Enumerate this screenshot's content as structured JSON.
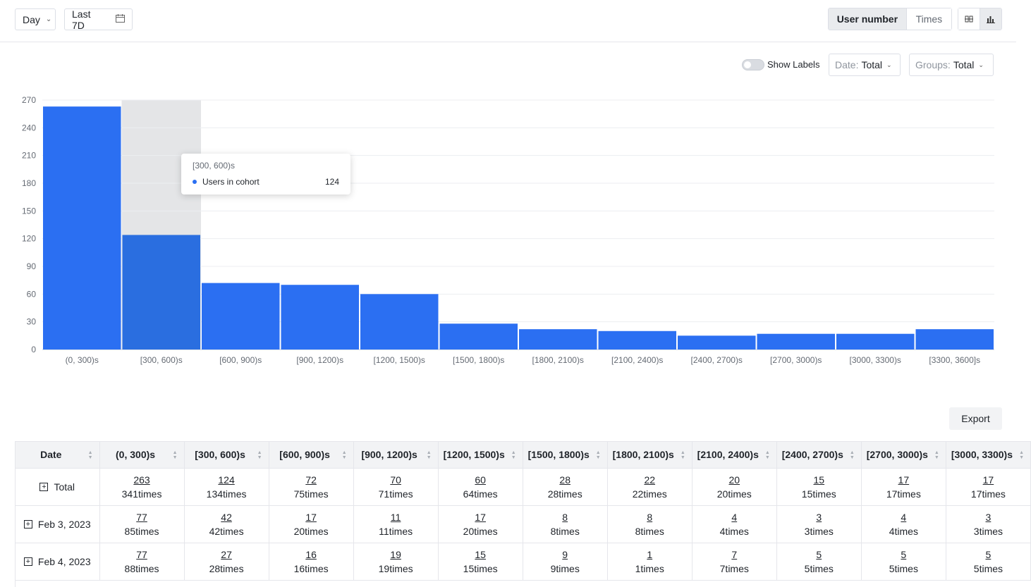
{
  "topbar": {
    "granularity": "Day",
    "date_range": "Last 7D",
    "metric_tabs": [
      {
        "label": "User number",
        "active": true
      },
      {
        "label": "Times",
        "active": false
      }
    ],
    "view_icons": [
      "split-view-icon",
      "bar-chart-icon"
    ]
  },
  "controls": {
    "show_labels": "Show Labels",
    "show_labels_on": false,
    "date_filter": {
      "key": "Date:",
      "value": "Total"
    },
    "groups_filter": {
      "key": "Groups:",
      "value": "Total"
    }
  },
  "chart_data": {
    "type": "bar",
    "categories": [
      "(0, 300)s",
      "[300, 600)s",
      "[600, 900)s",
      "[900, 1200)s",
      "[1200, 1500)s",
      "[1500, 1800)s",
      "[1800, 2100)s",
      "[2100, 2400)s",
      "[2400, 2700)s",
      "[2700, 3000)s",
      "[3000, 3300)s",
      "[3300, 3600]s"
    ],
    "series": [
      {
        "values": [
          263,
          124,
          72,
          70,
          60,
          28,
          22,
          20,
          15,
          17,
          17,
          22
        ]
      }
    ],
    "ylim": [
      0,
      270
    ],
    "yticks": [
      0,
      30,
      60,
      90,
      120,
      150,
      180,
      210,
      240,
      270
    ],
    "grid": true,
    "color": "#2b6ff2",
    "highlight_index": 1
  },
  "tooltip": {
    "title": "[300, 600)s",
    "series": "Users in cohort",
    "value": "124"
  },
  "table": {
    "export_label": "Export",
    "headers": [
      "Date",
      "(0, 300)s",
      "[300, 600)s",
      "[600, 900)s",
      "[900, 1200)s",
      "[1200, 1500)s",
      "[1500, 1800)s",
      "[1800, 2100)s",
      "[2100, 2400)s",
      "[2400, 2700)s",
      "[2700, 3000)s",
      "[3000, 3300)s"
    ],
    "rows": [
      {
        "label": "Total",
        "cells": [
          [
            "263",
            "341times"
          ],
          [
            "124",
            "134times"
          ],
          [
            "72",
            "75times"
          ],
          [
            "70",
            "71times"
          ],
          [
            "60",
            "64times"
          ],
          [
            "28",
            "28times"
          ],
          [
            "22",
            "22times"
          ],
          [
            "20",
            "20times"
          ],
          [
            "15",
            "15times"
          ],
          [
            "17",
            "17times"
          ],
          [
            "17",
            "17times"
          ]
        ]
      },
      {
        "label": "Feb 3, 2023",
        "cells": [
          [
            "77",
            "85times"
          ],
          [
            "42",
            "42times"
          ],
          [
            "17",
            "20times"
          ],
          [
            "11",
            "11times"
          ],
          [
            "17",
            "20times"
          ],
          [
            "8",
            "8times"
          ],
          [
            "8",
            "8times"
          ],
          [
            "4",
            "4times"
          ],
          [
            "3",
            "3times"
          ],
          [
            "4",
            "4times"
          ],
          [
            "3",
            "3times"
          ]
        ]
      },
      {
        "label": "Feb 4, 2023",
        "cells": [
          [
            "77",
            "88times"
          ],
          [
            "27",
            "28times"
          ],
          [
            "16",
            "16times"
          ],
          [
            "19",
            "19times"
          ],
          [
            "15",
            "15times"
          ],
          [
            "9",
            "9times"
          ],
          [
            "1",
            "1times"
          ],
          [
            "7",
            "7times"
          ],
          [
            "5",
            "5times"
          ],
          [
            "5",
            "5times"
          ],
          [
            "5",
            "5times"
          ]
        ]
      }
    ]
  }
}
